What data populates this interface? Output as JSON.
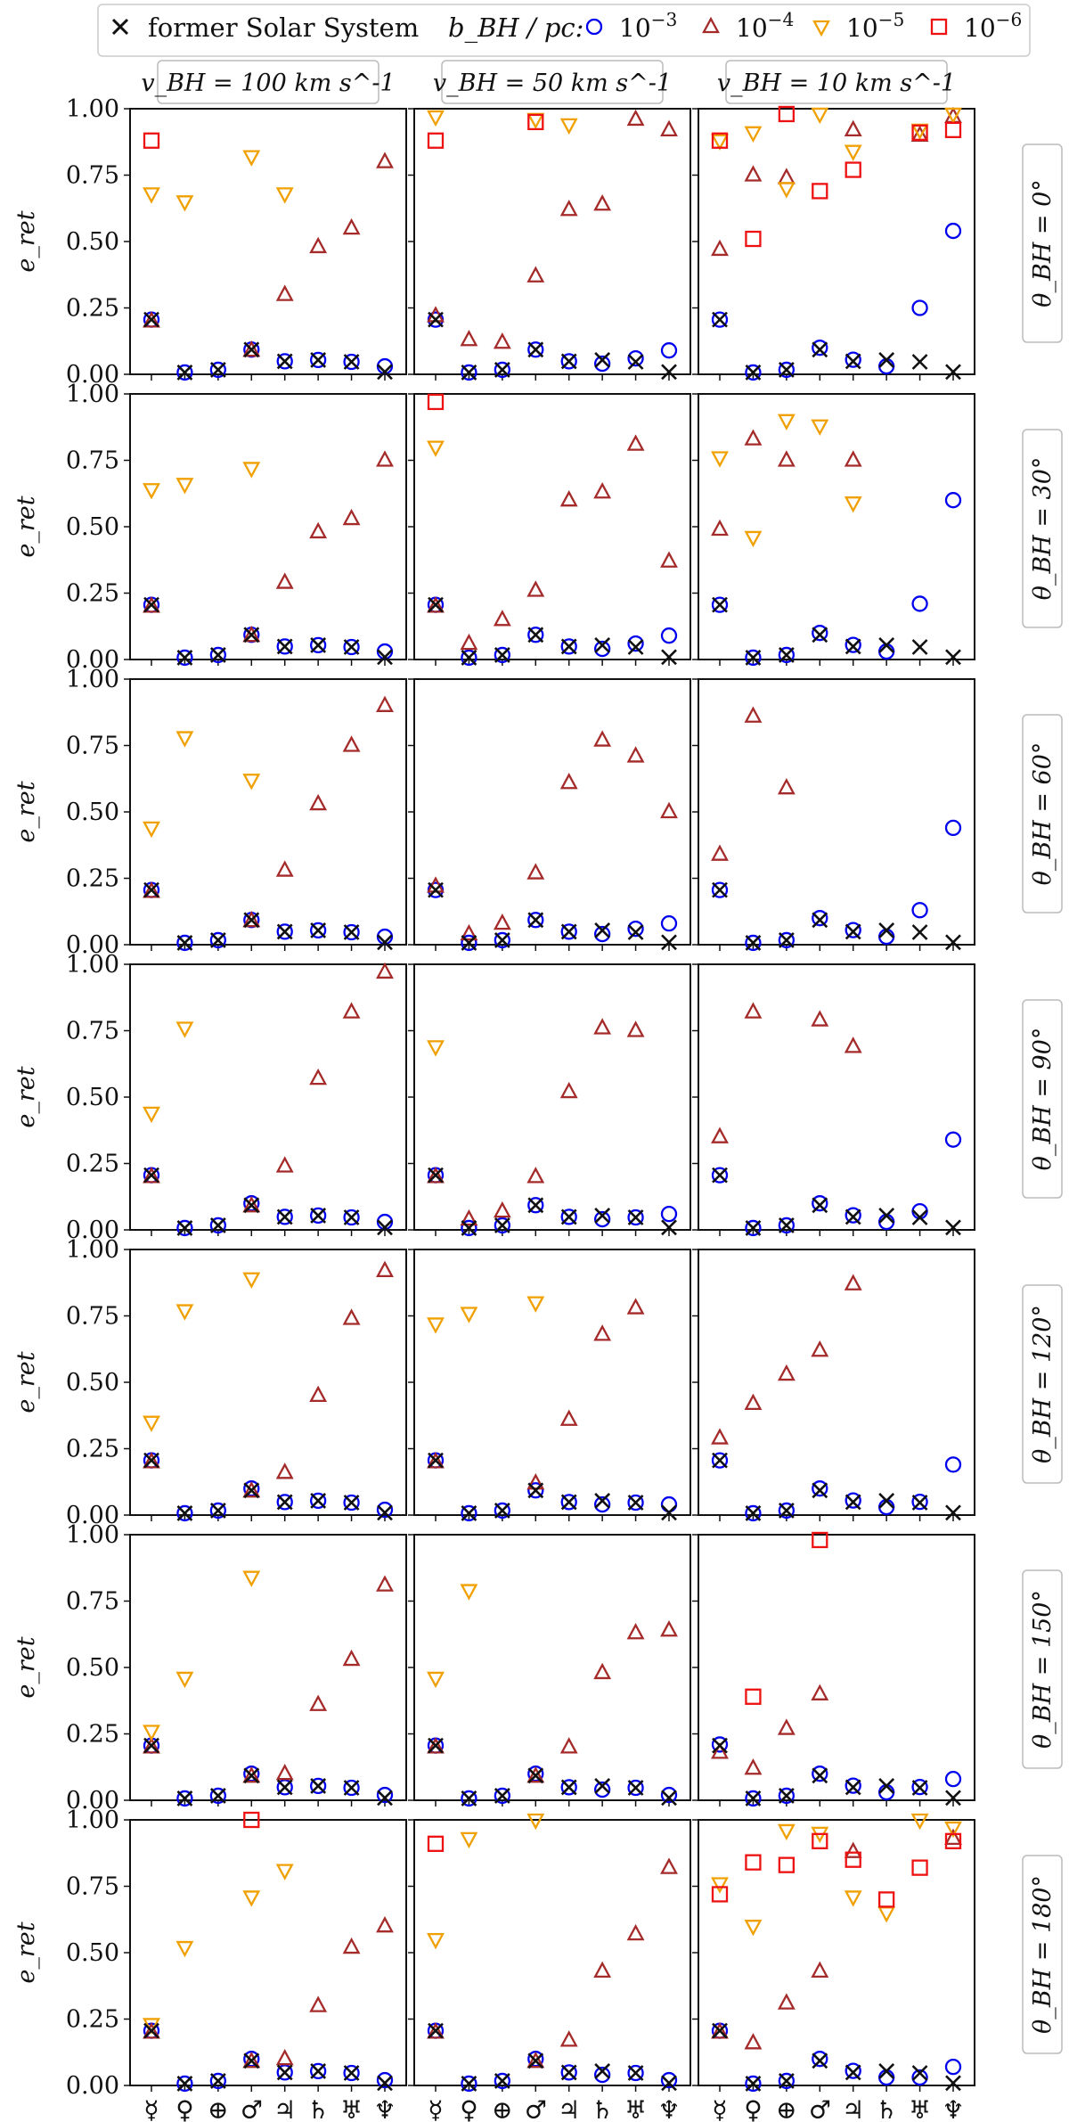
{
  "chart_data": {
    "type": "scatter",
    "title": "",
    "ylabel": "e_ret",
    "ylim": [
      0,
      1
    ],
    "yticks": [
      "0.00",
      "0.25",
      "0.50",
      "0.75",
      "1.00"
    ],
    "categories": [
      "☿",
      "♀",
      "⊕",
      "♂",
      "♃",
      "♄",
      "♅",
      "♆"
    ],
    "legend": {
      "placement": "top",
      "former_label": "former Solar System",
      "b_label": "b_BH / pc:",
      "entries": [
        {
          "key": "b3",
          "label": "10^-3",
          "marker": "circle",
          "color": "#0000ee"
        },
        {
          "key": "b4",
          "label": "10^-4",
          "marker": "triangle-up",
          "color": "#a52a2a"
        },
        {
          "key": "b5",
          "label": "10^-5",
          "marker": "triangle-down",
          "color": "#f0a000"
        },
        {
          "key": "b6",
          "label": "10^-6",
          "marker": "square",
          "color": "#ee1111"
        }
      ]
    },
    "columns": [
      {
        "label_v": "v_BH = 100 km s^-1"
      },
      {
        "label_v": "v_BH = 50 km s^-1"
      },
      {
        "label_v": "v_BH = 10 km s^-1"
      }
    ],
    "rows": [
      {
        "theta": "0°"
      },
      {
        "theta": "30°"
      },
      {
        "theta": "60°"
      },
      {
        "theta": "90°"
      },
      {
        "theta": "120°"
      },
      {
        "theta": "150°"
      },
      {
        "theta": "180°"
      }
    ],
    "former": [
      0.206,
      0.007,
      0.017,
      0.093,
      0.049,
      0.054,
      0.047,
      0.009
    ],
    "panels": [
      [
        {
          "b3": [
            0.206,
            0.007,
            0.017,
            0.093,
            0.049,
            0.054,
            0.047,
            0.03
          ],
          "b4": [
            0.2,
            null,
            null,
            0.09,
            0.3,
            0.48,
            0.55,
            0.8
          ],
          "b5": [
            0.68,
            0.65,
            null,
            0.82,
            0.68,
            null,
            null,
            null
          ],
          "b6": [
            0.88,
            null,
            null,
            null,
            null,
            null,
            null,
            null
          ]
        },
        {
          "b3": [
            0.206,
            0.007,
            0.017,
            0.093,
            0.049,
            0.04,
            0.06,
            0.09
          ],
          "b4": [
            0.22,
            0.13,
            0.12,
            0.37,
            0.62,
            0.64,
            0.96,
            0.92
          ],
          "b5": [
            0.97,
            null,
            null,
            0.96,
            0.94,
            null,
            null,
            null
          ],
          "b6": [
            0.88,
            null,
            null,
            0.95,
            null,
            null,
            null,
            null
          ]
        },
        {
          "b3": [
            0.206,
            0.007,
            0.017,
            0.1,
            0.055,
            0.03,
            0.25,
            0.54
          ],
          "b4": [
            0.47,
            0.75,
            0.74,
            null,
            0.92,
            null,
            0.9,
            0.97
          ],
          "b5": [
            0.88,
            0.91,
            0.7,
            0.98,
            0.84,
            null,
            0.92,
            0.98
          ],
          "b6": [
            0.88,
            0.51,
            0.98,
            0.69,
            0.77,
            null,
            0.91,
            0.92
          ]
        }
      ],
      [
        {
          "b3": [
            0.206,
            0.007,
            0.017,
            0.093,
            0.049,
            0.054,
            0.047,
            0.03
          ],
          "b4": [
            0.2,
            null,
            null,
            0.09,
            0.29,
            0.48,
            0.53,
            0.75
          ],
          "b5": [
            0.64,
            0.66,
            null,
            0.72,
            null,
            null,
            null,
            null
          ],
          "b6": [
            null,
            null,
            null,
            null,
            null,
            null,
            null,
            null
          ]
        },
        {
          "b3": [
            0.206,
            0.007,
            0.017,
            0.093,
            0.049,
            0.04,
            0.06,
            0.09
          ],
          "b4": [
            0.2,
            0.06,
            0.15,
            0.26,
            0.6,
            0.63,
            0.81,
            0.37
          ],
          "b5": [
            0.8,
            null,
            null,
            null,
            null,
            null,
            null,
            null
          ],
          "b6": [
            0.97,
            null,
            null,
            null,
            null,
            null,
            null,
            null
          ]
        },
        {
          "b3": [
            0.206,
            0.007,
            0.017,
            0.1,
            0.055,
            0.03,
            0.21,
            0.6
          ],
          "b4": [
            0.49,
            0.83,
            0.75,
            null,
            0.75,
            null,
            null,
            null
          ],
          "b5": [
            0.76,
            0.46,
            0.9,
            0.88,
            0.59,
            null,
            null,
            null
          ],
          "b6": [
            null,
            null,
            null,
            null,
            null,
            null,
            null,
            null
          ]
        }
      ],
      [
        {
          "b3": [
            0.206,
            0.007,
            0.017,
            0.093,
            0.049,
            0.054,
            0.047,
            0.03
          ],
          "b4": [
            0.2,
            null,
            null,
            0.09,
            0.28,
            0.53,
            0.75,
            0.9
          ],
          "b5": [
            0.44,
            0.78,
            null,
            0.62,
            null,
            null,
            null,
            null
          ],
          "b6": [
            null,
            null,
            null,
            null,
            null,
            null,
            null,
            null
          ]
        },
        {
          "b3": [
            0.206,
            0.007,
            0.017,
            0.093,
            0.049,
            0.04,
            0.06,
            0.08
          ],
          "b4": [
            0.22,
            0.04,
            0.08,
            0.27,
            0.61,
            0.77,
            0.71,
            0.5
          ],
          "b5": [
            null,
            null,
            null,
            null,
            null,
            null,
            null,
            null
          ],
          "b6": [
            null,
            null,
            null,
            null,
            null,
            null,
            null,
            null
          ]
        },
        {
          "b3": [
            0.206,
            0.007,
            0.017,
            0.1,
            0.055,
            0.03,
            0.13,
            0.44
          ],
          "b4": [
            0.34,
            0.86,
            0.59,
            null,
            null,
            null,
            null,
            null
          ],
          "b5": [
            null,
            null,
            null,
            null,
            null,
            null,
            null,
            null
          ],
          "b6": [
            null,
            null,
            null,
            null,
            null,
            null,
            null,
            null
          ]
        }
      ],
      [
        {
          "b3": [
            0.206,
            0.007,
            0.017,
            0.1,
            0.049,
            0.054,
            0.047,
            0.03
          ],
          "b4": [
            0.2,
            null,
            null,
            0.09,
            0.24,
            0.57,
            0.82,
            0.97
          ],
          "b5": [
            0.44,
            0.76,
            null,
            null,
            null,
            null,
            null,
            null
          ],
          "b6": [
            null,
            null,
            null,
            null,
            null,
            null,
            null,
            null
          ]
        },
        {
          "b3": [
            0.206,
            0.007,
            0.017,
            0.093,
            0.049,
            0.04,
            0.047,
            0.06
          ],
          "b4": [
            0.2,
            0.04,
            0.07,
            0.2,
            0.52,
            0.76,
            0.75,
            null
          ],
          "b5": [
            0.69,
            null,
            null,
            null,
            null,
            null,
            null,
            null
          ],
          "b6": [
            null,
            null,
            null,
            null,
            null,
            null,
            null,
            null
          ]
        },
        {
          "b3": [
            0.206,
            0.007,
            0.017,
            0.1,
            0.055,
            0.03,
            0.07,
            0.34
          ],
          "b4": [
            0.35,
            0.82,
            null,
            0.79,
            0.69,
            null,
            null,
            null
          ],
          "b5": [
            null,
            null,
            null,
            null,
            null,
            null,
            null,
            null
          ],
          "b6": [
            null,
            null,
            null,
            null,
            null,
            null,
            null,
            null
          ]
        }
      ],
      [
        {
          "b3": [
            0.206,
            0.007,
            0.017,
            0.1,
            0.049,
            0.054,
            0.047,
            0.02
          ],
          "b4": [
            0.2,
            null,
            null,
            0.09,
            0.16,
            0.45,
            0.74,
            0.92
          ],
          "b5": [
            0.35,
            0.77,
            null,
            0.89,
            null,
            null,
            null,
            null
          ],
          "b6": [
            null,
            null,
            null,
            null,
            null,
            null,
            null,
            null
          ]
        },
        {
          "b3": [
            0.206,
            0.007,
            0.017,
            0.093,
            0.049,
            0.04,
            0.047,
            0.04
          ],
          "b4": [
            0.2,
            null,
            null,
            0.12,
            0.36,
            0.68,
            0.78,
            null
          ],
          "b5": [
            0.72,
            0.76,
            null,
            0.8,
            null,
            null,
            null,
            null
          ],
          "b6": [
            null,
            null,
            null,
            null,
            null,
            null,
            null,
            null
          ]
        },
        {
          "b3": [
            0.206,
            0.007,
            0.017,
            0.1,
            0.055,
            0.03,
            0.05,
            0.19
          ],
          "b4": [
            0.29,
            0.42,
            0.53,
            0.62,
            0.87,
            null,
            null,
            null
          ],
          "b5": [
            null,
            null,
            null,
            null,
            null,
            null,
            null,
            null
          ],
          "b6": [
            null,
            null,
            null,
            null,
            null,
            null,
            null,
            null
          ]
        }
      ],
      [
        {
          "b3": [
            0.206,
            0.007,
            0.017,
            0.1,
            0.049,
            0.054,
            0.047,
            0.02
          ],
          "b4": [
            0.2,
            null,
            null,
            0.09,
            0.1,
            0.36,
            0.53,
            0.81
          ],
          "b5": [
            0.26,
            0.46,
            null,
            0.84,
            null,
            null,
            null,
            null
          ],
          "b6": [
            null,
            null,
            null,
            null,
            null,
            null,
            null,
            null
          ]
        },
        {
          "b3": [
            0.206,
            0.007,
            0.017,
            0.1,
            0.049,
            0.04,
            0.047,
            0.02
          ],
          "b4": [
            0.2,
            null,
            null,
            0.09,
            0.2,
            0.48,
            0.63,
            0.64
          ],
          "b5": [
            0.46,
            0.79,
            null,
            null,
            null,
            null,
            null,
            null
          ],
          "b6": [
            null,
            null,
            null,
            null,
            null,
            null,
            null,
            null
          ]
        },
        {
          "b3": [
            0.21,
            0.007,
            0.017,
            0.1,
            0.055,
            0.03,
            0.05,
            0.08
          ],
          "b4": [
            0.18,
            0.12,
            0.27,
            0.4,
            null,
            null,
            null,
            null
          ],
          "b5": [
            null,
            null,
            null,
            null,
            null,
            null,
            null,
            null
          ],
          "b6": [
            null,
            0.39,
            null,
            0.98,
            null,
            null,
            null,
            null
          ]
        }
      ],
      [
        {
          "b3": [
            0.206,
            0.007,
            0.017,
            0.1,
            0.049,
            0.054,
            0.047,
            0.02
          ],
          "b4": [
            0.2,
            null,
            null,
            0.09,
            0.1,
            0.3,
            0.52,
            0.6
          ],
          "b5": [
            0.23,
            0.52,
            null,
            0.71,
            0.81,
            null,
            null,
            null
          ],
          "b6": [
            null,
            null,
            null,
            1.0,
            null,
            null,
            null,
            null
          ]
        },
        {
          "b3": [
            0.206,
            0.007,
            0.017,
            0.1,
            0.049,
            0.04,
            0.047,
            0.02
          ],
          "b4": [
            0.2,
            null,
            null,
            0.09,
            0.17,
            0.43,
            0.57,
            0.82
          ],
          "b5": [
            0.55,
            0.93,
            null,
            1.0,
            null,
            null,
            null,
            null
          ],
          "b6": [
            0.91,
            null,
            null,
            null,
            null,
            null,
            null,
            null
          ]
        },
        {
          "b3": [
            0.206,
            0.007,
            0.017,
            0.1,
            0.055,
            0.03,
            0.03,
            0.07
          ],
          "b4": [
            0.2,
            0.16,
            0.31,
            0.43,
            0.88,
            null,
            null,
            0.93
          ],
          "b5": [
            0.76,
            0.6,
            0.96,
            0.95,
            0.71,
            0.65,
            1.0,
            0.97
          ],
          "b6": [
            0.72,
            0.84,
            0.83,
            0.92,
            0.85,
            0.7,
            0.82,
            0.92
          ]
        }
      ]
    ]
  }
}
